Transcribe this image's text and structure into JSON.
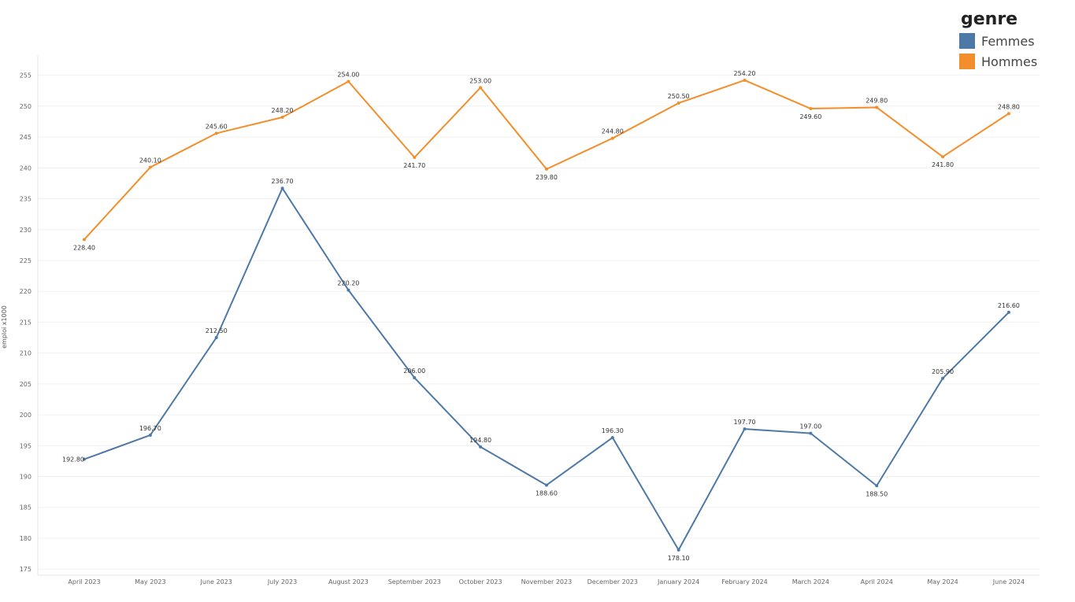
{
  "chart_data": {
    "type": "line",
    "ylabel": "emploi x1000",
    "xlabel": "",
    "ylim": [
      174,
      257
    ],
    "yticks": [
      175,
      180,
      185,
      190,
      195,
      200,
      205,
      210,
      215,
      220,
      225,
      230,
      235,
      240,
      245,
      250,
      255
    ],
    "categories": [
      "April 2023",
      "May 2023",
      "June 2023",
      "July 2023",
      "August 2023",
      "September 2023",
      "October 2023",
      "November 2023",
      "December 2023",
      "January 2024",
      "February 2024",
      "March 2024",
      "April 2024",
      "May 2024",
      "June 2024"
    ],
    "grid": true,
    "legend_placement": "top-right",
    "legend_title": "genre",
    "series": [
      {
        "name": "Femmes",
        "color": "#4e79a7",
        "values": [
          192.8,
          196.7,
          212.5,
          236.7,
          220.2,
          206.0,
          194.8,
          188.6,
          196.3,
          178.1,
          197.7,
          197.0,
          188.5,
          205.9,
          216.6
        ],
        "labels": [
          "192.80",
          "196.70",
          "212.50",
          "236.70",
          "220.20",
          "206.00",
          "194.80",
          "188.60",
          "196.30",
          "178.10",
          "197.70",
          "197.00",
          "188.50",
          "205.90",
          "216.60"
        ]
      },
      {
        "name": "Hommes",
        "color": "#f28e2b",
        "values": [
          228.4,
          240.1,
          245.6,
          248.2,
          254.0,
          241.7,
          253.0,
          239.8,
          244.8,
          250.5,
          254.2,
          249.6,
          249.8,
          241.8,
          248.8
        ],
        "labels": [
          "228.40",
          "240.10",
          "245.60",
          "248.20",
          "254.00",
          "241.70",
          "253.00",
          "239.80",
          "244.80",
          "250.50",
          "254.20",
          "249.60",
          "249.80",
          "241.80",
          "248.80"
        ]
      }
    ]
  }
}
